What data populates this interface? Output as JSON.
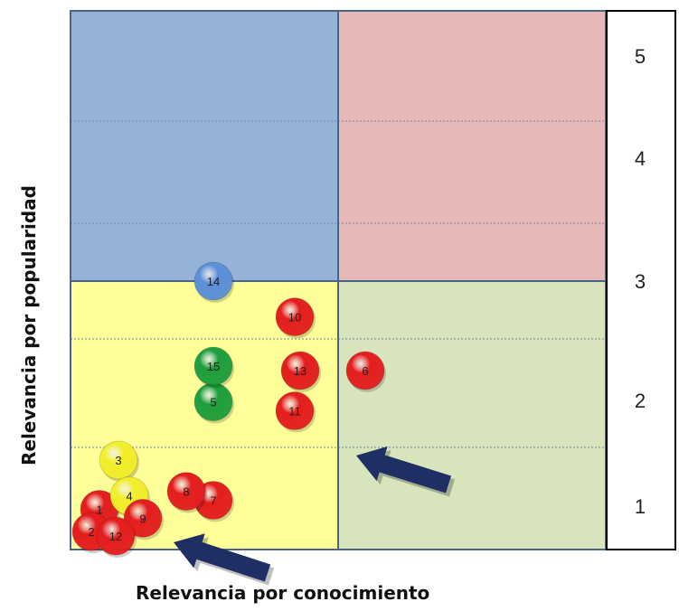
{
  "chart_data": {
    "type": "scatter",
    "xlabel": "Relevancia por conocimiento",
    "ylabel": "Relevancia por popularidad",
    "scale_ticks": [
      "5",
      "4",
      "3",
      "2",
      "1"
    ],
    "quadrants": {
      "top_left": "#95b3d7",
      "top_right": "#e6b8b7",
      "bottom_left": "#ffff99",
      "bottom_right": "#d7e4bc"
    },
    "points": [
      {
        "label": "1",
        "x": 0.5,
        "y": 0.45,
        "color": "red"
      },
      {
        "label": "2",
        "x": 0.35,
        "y": 0.2,
        "color": "red"
      },
      {
        "label": "3",
        "x": 0.85,
        "y": 1.0,
        "color": "yellow"
      },
      {
        "label": "4",
        "x": 1.05,
        "y": 0.6,
        "color": "yellow"
      },
      {
        "label": "5",
        "x": 2.6,
        "y": 1.65,
        "color": "green"
      },
      {
        "label": "6",
        "x": 5.4,
        "y": 2.0,
        "color": "red"
      },
      {
        "label": "7",
        "x": 2.6,
        "y": 0.55,
        "color": "red"
      },
      {
        "label": "8",
        "x": 2.1,
        "y": 0.65,
        "color": "red"
      },
      {
        "label": "9",
        "x": 1.3,
        "y": 0.35,
        "color": "red"
      },
      {
        "label": "10",
        "x": 4.1,
        "y": 2.6,
        "color": "red"
      },
      {
        "label": "11",
        "x": 4.1,
        "y": 1.55,
        "color": "red"
      },
      {
        "label": "12",
        "x": 0.8,
        "y": 0.15,
        "color": "red"
      },
      {
        "label": "13",
        "x": 4.2,
        "y": 2.0,
        "color": "red"
      },
      {
        "label": "14",
        "x": 2.6,
        "y": 3.0,
        "color": "blue"
      },
      {
        "label": "15",
        "x": 2.6,
        "y": 2.05,
        "color": "green"
      }
    ],
    "colors": {
      "red": "#e41e1e",
      "yellow": "#f2ee2a",
      "green": "#1e9e3c",
      "blue": "#5b8fd8",
      "arrow": "#1f2f63",
      "grid": "#4a6487"
    }
  }
}
